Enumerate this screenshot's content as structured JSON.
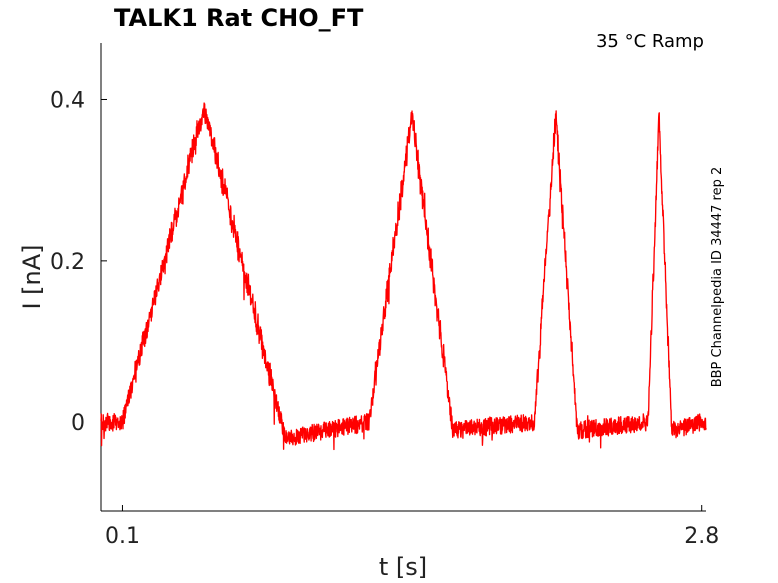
{
  "chart_data": {
    "type": "line",
    "title": "TALK1  Rat  CHO_FT",
    "subtitle": "35 °C  Ramp",
    "side_note": "BBP Channelpedia ID 34447 rep 2",
    "xlabel": "t [s]",
    "ylabel": "I [nA]",
    "xlim": [
      0.0,
      2.82
    ],
    "ylim": [
      -0.11,
      0.47
    ],
    "x_ticks": [
      0.1,
      2.8
    ],
    "x_tick_labels": [
      "0.1",
      "2.8"
    ],
    "y_ticks": [
      0,
      0.2,
      0.4
    ],
    "y_tick_labels": [
      "0",
      "0.2",
      "0.4"
    ],
    "grid": false,
    "series": [
      {
        "color": "#ff0000",
        "x": [
          0.0,
          0.1,
          0.48,
          0.86,
          1.25,
          1.45,
          1.64,
          2.02,
          2.12,
          2.22,
          2.55,
          2.6,
          2.66,
          2.8
        ],
        "y": [
          0.0,
          0.0,
          0.39,
          -0.02,
          0.0,
          0.38,
          -0.01,
          0.0,
          0.38,
          -0.01,
          0.0,
          0.38,
          -0.01,
          0.0
        ]
      }
    ]
  }
}
